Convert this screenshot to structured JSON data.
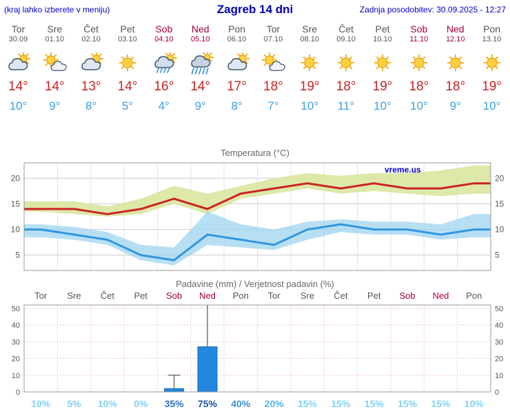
{
  "header": {
    "left_note": "(kraj lahko izberete v meniju)",
    "title": "Zagreb 14 dni",
    "updated": "Zadnja posodobitev: 30.09.2025 - 12:27"
  },
  "colors": {
    "header_blue": "#0000cc",
    "title_blue": "#0000bb",
    "day_gray": "#555555",
    "weekend_red": "#a50034",
    "max_temp_red": "#cc2222",
    "min_temp_blue": "#3aa0e8",
    "bar_blue": "#2288dd",
    "watermark_blue": "#0000cc"
  },
  "days": [
    {
      "name": "Tor",
      "date": "30.09",
      "weekend": false,
      "icon": "cloud-sun",
      "max": "14°",
      "min": "10°"
    },
    {
      "name": "Sre",
      "date": "01.10",
      "weekend": false,
      "icon": "sun-cloud",
      "max": "14°",
      "min": "9°"
    },
    {
      "name": "Čet",
      "date": "02.10",
      "weekend": false,
      "icon": "cloud-sun",
      "max": "13°",
      "min": "8°"
    },
    {
      "name": "Pet",
      "date": "03.10",
      "weekend": false,
      "icon": "sun",
      "max": "14°",
      "min": "5°"
    },
    {
      "name": "Sob",
      "date": "04.10",
      "weekend": true,
      "icon": "rain-sun",
      "max": "16°",
      "min": "4°"
    },
    {
      "name": "Ned",
      "date": "05.10",
      "weekend": true,
      "icon": "rain-heavy",
      "max": "14°",
      "min": "9°"
    },
    {
      "name": "Pon",
      "date": "06.10",
      "weekend": false,
      "icon": "cloud-sun",
      "max": "17°",
      "min": "8°"
    },
    {
      "name": "Tor",
      "date": "07.10",
      "weekend": false,
      "icon": "sun-cloud",
      "max": "18°",
      "min": "7°"
    },
    {
      "name": "Sre",
      "date": "08.10",
      "weekend": false,
      "icon": "sun",
      "max": "19°",
      "min": "10°"
    },
    {
      "name": "Čet",
      "date": "09.10",
      "weekend": false,
      "icon": "sun",
      "max": "18°",
      "min": "11°"
    },
    {
      "name": "Pet",
      "date": "10.10",
      "weekend": false,
      "icon": "sun",
      "max": "19°",
      "min": "10°"
    },
    {
      "name": "Sob",
      "date": "11.10",
      "weekend": true,
      "icon": "sun",
      "max": "18°",
      "min": "10°"
    },
    {
      "name": "Ned",
      "date": "12.10",
      "weekend": true,
      "icon": "sun",
      "max": "18°",
      "min": "9°"
    },
    {
      "name": "Pon",
      "date": "13.10",
      "weekend": false,
      "icon": "sun",
      "max": "19°",
      "min": "10°"
    }
  ],
  "chart_data": [
    {
      "type": "line",
      "title": "Temperatura (°C)",
      "watermark": "vreme.us",
      "categories": [
        "Tor",
        "Sre",
        "Čet",
        "Pet",
        "Sob",
        "Ned",
        "Pon",
        "Tor",
        "Sre",
        "Čet",
        "Pet",
        "Sob",
        "Ned",
        "Pon"
      ],
      "series": [
        {
          "name": "max temperature",
          "color": "#cc2222",
          "values": [
            14,
            14,
            13,
            14,
            16,
            14,
            17,
            18,
            19,
            18,
            19,
            18,
            18,
            19
          ]
        },
        {
          "name": "min temperature",
          "color": "#2f97e0",
          "values": [
            10,
            9,
            8,
            5,
            4,
            9,
            8,
            7,
            10,
            11,
            10,
            10,
            9,
            10
          ]
        }
      ],
      "bands": [
        {
          "name": "max temperature range",
          "color": "#d9e6a0",
          "opacity": 0.9,
          "upper": [
            15.5,
            15.5,
            14.5,
            16,
            18.5,
            17,
            18.5,
            20,
            21,
            20.5,
            21,
            21,
            21.5,
            22.5
          ],
          "lower": [
            13.5,
            13,
            12.5,
            13,
            15,
            13,
            16,
            17,
            18,
            17,
            17.5,
            17,
            16.5,
            17
          ]
        },
        {
          "name": "min temperature range",
          "color": "#9fd4f0",
          "opacity": 0.75,
          "upper": [
            11,
            10.5,
            9.5,
            7,
            6.5,
            13.5,
            11,
            10,
            11.5,
            12,
            11.5,
            11.5,
            11,
            13
          ],
          "lower": [
            8.5,
            8,
            7,
            4,
            3,
            7,
            6.5,
            6,
            8,
            9.5,
            9,
            9,
            8,
            8.5
          ]
        }
      ],
      "ylim": [
        2,
        23
      ],
      "yticks": [
        5,
        10,
        15,
        20
      ],
      "grid": true,
      "legend": "none"
    },
    {
      "type": "bar",
      "title": "Padavine (mm) / Verjetnost padavin (%)",
      "categories": [
        "Tor",
        "Sre",
        "Čet",
        "Pet",
        "Sob",
        "Ned",
        "Pon",
        "Tor",
        "Sre",
        "Čet",
        "Pet",
        "Sob",
        "Ned",
        "Pon"
      ],
      "weekend": [
        false,
        false,
        false,
        false,
        true,
        true,
        false,
        false,
        false,
        false,
        false,
        true,
        true,
        false
      ],
      "values": [
        0,
        0,
        0,
        0,
        2,
        27,
        0,
        0,
        0,
        0,
        0,
        0,
        0,
        0
      ],
      "whisker_max": [
        0,
        0,
        0,
        0,
        10,
        52,
        0,
        0,
        0,
        0,
        0,
        0,
        0,
        0
      ],
      "probabilities": [
        "10%",
        "5%",
        "10%",
        "0%",
        "35%",
        "75%",
        "40%",
        "20%",
        "15%",
        "15%",
        "15%",
        "15%",
        "15%",
        "10%"
      ],
      "prob_colors": [
        "#7fd4f2",
        "#7fd4f2",
        "#7fd4f2",
        "#7fd4f2",
        "#2d6fc2",
        "#1b4fa8",
        "#3d8fd4",
        "#58b6e6",
        "#7fd4f2",
        "#7fd4f2",
        "#7fd4f2",
        "#7fd4f2",
        "#7fd4f2",
        "#7fd4f2"
      ],
      "bar_color": "#2288dd",
      "ylim": [
        0,
        52
      ],
      "yticks": [
        0,
        10,
        20,
        30,
        40,
        50
      ],
      "grid": true
    }
  ]
}
